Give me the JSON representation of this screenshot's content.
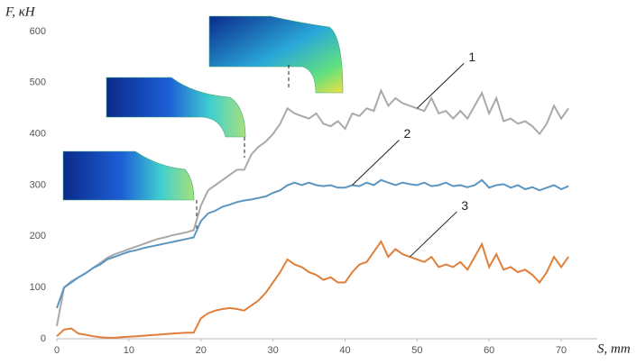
{
  "chart_data": {
    "type": "line",
    "x_label": "S, mm",
    "y_label": "F, кН",
    "x": [
      0,
      1,
      2,
      3,
      4,
      5,
      6,
      7,
      8,
      9,
      10,
      11,
      12,
      13,
      14,
      15,
      16,
      17,
      18,
      19,
      20,
      21,
      22,
      23,
      24,
      25,
      26,
      27,
      28,
      29,
      30,
      31,
      32,
      33,
      34,
      35,
      36,
      37,
      38,
      39,
      40,
      41,
      42,
      43,
      44,
      45,
      46,
      47,
      48,
      49,
      50,
      51,
      52,
      53,
      54,
      55,
      56,
      57,
      58,
      59,
      60,
      61,
      62,
      63,
      64,
      65,
      66,
      67,
      68,
      69,
      70,
      71
    ],
    "series": [
      {
        "name": "1",
        "color": "#a9a9a9",
        "values": [
          25,
          100,
          112,
          120,
          128,
          138,
          148,
          158,
          165,
          170,
          175,
          180,
          185,
          190,
          195,
          198,
          202,
          205,
          208,
          212,
          260,
          290,
          300,
          310,
          320,
          330,
          330,
          360,
          375,
          385,
          400,
          420,
          450,
          440,
          435,
          430,
          440,
          420,
          415,
          425,
          410,
          440,
          435,
          450,
          445,
          485,
          455,
          470,
          460,
          455,
          450,
          445,
          470,
          440,
          445,
          430,
          445,
          430,
          455,
          480,
          440,
          470,
          425,
          430,
          420,
          425,
          415,
          400,
          420,
          455,
          430,
          450
        ]
      },
      {
        "name": "2",
        "color": "#5b96c2",
        "values": [
          60,
          100,
          110,
          120,
          128,
          138,
          145,
          155,
          160,
          165,
          170,
          173,
          177,
          180,
          183,
          186,
          189,
          192,
          195,
          198,
          230,
          245,
          250,
          258,
          262,
          267,
          270,
          272,
          275,
          278,
          285,
          290,
          300,
          305,
          300,
          305,
          300,
          298,
          300,
          295,
          295,
          300,
          298,
          305,
          300,
          310,
          305,
          300,
          305,
          302,
          300,
          305,
          298,
          300,
          305,
          298,
          300,
          296,
          300,
          310,
          295,
          300,
          302,
          295,
          300,
          292,
          296,
          290,
          295,
          300,
          292,
          298
        ]
      },
      {
        "name": "3",
        "color": "#e07f3a",
        "values": [
          5,
          18,
          20,
          10,
          8,
          5,
          3,
          2,
          2,
          3,
          4,
          5,
          6,
          7,
          8,
          9,
          10,
          11,
          12,
          12,
          40,
          50,
          55,
          58,
          60,
          58,
          55,
          65,
          75,
          90,
          110,
          130,
          155,
          145,
          140,
          130,
          125,
          115,
          120,
          110,
          110,
          130,
          145,
          150,
          170,
          190,
          160,
          175,
          165,
          160,
          155,
          150,
          160,
          140,
          145,
          140,
          150,
          135,
          160,
          185,
          140,
          165,
          135,
          140,
          130,
          135,
          125,
          110,
          130,
          160,
          140,
          160
        ]
      }
    ],
    "xlim": [
      0,
      75
    ],
    "ylim": [
      0,
      600
    ],
    "xticks": [
      0,
      10,
      20,
      30,
      40,
      50,
      60,
      70
    ],
    "yticks": [
      0,
      100,
      200,
      300,
      400,
      500,
      600
    ],
    "grid": false
  }
}
